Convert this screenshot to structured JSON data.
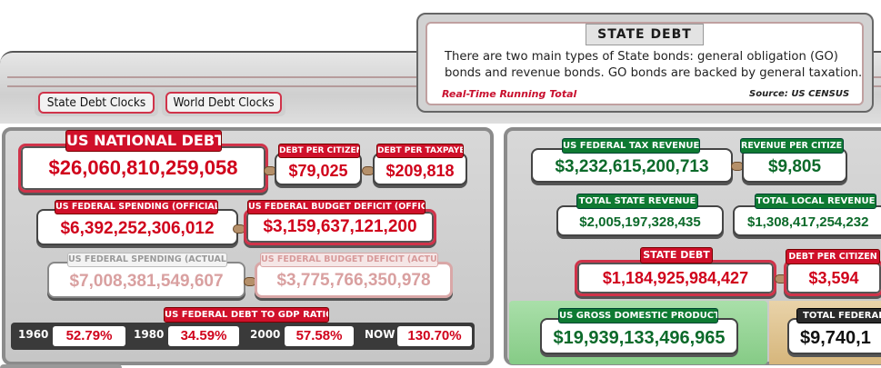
{
  "info": {
    "title": "STATE DEBT",
    "line1": "There are two main types of State bonds: general obligation (GO)",
    "line2": "bonds and revenue bonds. GO bonds are backed by general taxation.",
    "running": "Real-Time Running Total",
    "source": "Source: US CENSUS"
  },
  "tabs": {
    "state": "State Debt Clocks",
    "world": "World Debt Clocks"
  },
  "national": {
    "label": "US NATIONAL DEBT",
    "value": "$26,060,810,259,058",
    "citizen_label": "DEBT PER CITIZEN",
    "citizen_value": "$79,025",
    "taxpayer_label": "DEBT PER TAXPAYER",
    "taxpayer_value": "$209,818"
  },
  "spending": {
    "official_label": "US FEDERAL SPENDING (OFFICIAL)",
    "official_value": "$6,392,252,306,012",
    "deficit_official_label": "US FEDERAL BUDGET DEFICIT (OFFICIAL)",
    "deficit_official_value": "$3,159,637,121,200",
    "actual_label": "US FEDERAL SPENDING (ACTUAL)",
    "actual_value": "$7,008,381,549,607",
    "deficit_actual_label": "US FEDERAL BUDGET DEFICIT (ACTUAL)",
    "deficit_actual_value": "$3,775,766,350,978"
  },
  "ratio": {
    "label": "US FEDERAL DEBT TO GDP RATIO",
    "items": [
      {
        "year": "1960",
        "value": "52.79%"
      },
      {
        "year": "1980",
        "value": "34.59%"
      },
      {
        "year": "2000",
        "value": "57.58%"
      },
      {
        "year": "NOW",
        "value": "130.70%"
      }
    ]
  },
  "right": {
    "tax_label": "US FEDERAL TAX REVENUE",
    "tax_value": "$3,232,615,200,713",
    "rev_citizen_label": "REVENUE PER CITIZEN",
    "rev_citizen_value": "$9,805",
    "state_rev_label": "TOTAL STATE REVENUE",
    "state_rev_value": "$2,005,197,328,435",
    "local_rev_label": "TOTAL LOCAL REVENUE",
    "local_rev_value": "$1,308,417,254,232",
    "state_debt_label": "STATE DEBT",
    "state_debt_value": "$1,184,925,984,427",
    "state_citizen_label": "DEBT PER CITIZEN",
    "state_citizen_value": "$3,594",
    "gdp_label": "US GROSS DOMESTIC PRODUCT",
    "gdp_value": "$19,939,133,496,965",
    "total_fed_label": "TOTAL FEDERAL/S",
    "total_fed_value": "$9,740,1"
  },
  "colors": {
    "red": "#d0021b",
    "green": "#0c6a2a",
    "label_red": "#d0102a",
    "label_green": "#0e7a32"
  }
}
